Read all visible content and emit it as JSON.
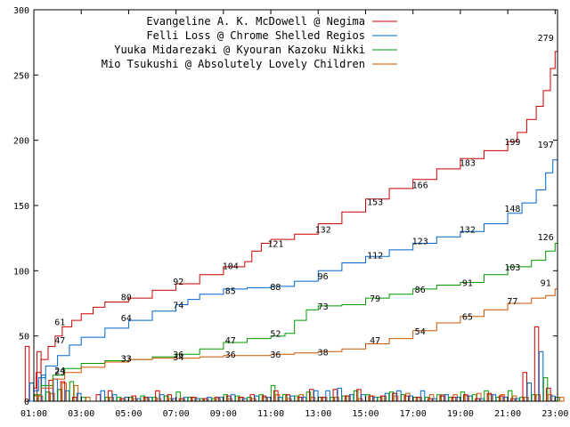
{
  "chart_data": {
    "type": "line",
    "title": "",
    "xlabel": "",
    "ylabel": "",
    "xlim": [
      1,
      23.1
    ],
    "ylim": [
      0,
      300
    ],
    "grid": false,
    "legend_position": "top-right",
    "x_tick_labels": [
      {
        "x": 1,
        "label": "01:00"
      },
      {
        "x": 3,
        "label": "03:00"
      },
      {
        "x": 5,
        "label": "05:00"
      },
      {
        "x": 7,
        "label": "07:00"
      },
      {
        "x": 9,
        "label": "09:00"
      },
      {
        "x": 11,
        "label": "11:00"
      },
      {
        "x": 13,
        "label": "13:00"
      },
      {
        "x": 15,
        "label": "15:00"
      },
      {
        "x": 17,
        "label": "17:00"
      },
      {
        "x": 19,
        "label": "19:00"
      },
      {
        "x": 21,
        "label": "21:00"
      },
      {
        "x": 23,
        "label": "23:00"
      }
    ],
    "y_ticks": [
      0,
      50,
      100,
      150,
      200,
      250,
      300
    ],
    "series": [
      {
        "name": "Evangeline A. K. McDowell @ Negima",
        "color": "#cc0000",
        "points": [
          [
            1,
            10
          ],
          [
            1.1,
            22
          ],
          [
            1.3,
            32
          ],
          [
            1.6,
            42
          ],
          [
            1.9,
            50
          ],
          [
            2.2,
            57
          ],
          [
            2.6,
            62
          ],
          [
            3,
            67
          ],
          [
            3.5,
            72
          ],
          [
            4,
            76
          ],
          [
            5,
            79
          ],
          [
            6,
            85
          ],
          [
            7,
            90
          ],
          [
            8,
            97
          ],
          [
            9,
            103
          ],
          [
            9.9,
            107
          ],
          [
            10.2,
            115
          ],
          [
            10.6,
            121
          ],
          [
            11,
            124
          ],
          [
            12,
            128
          ],
          [
            13,
            136
          ],
          [
            14,
            145
          ],
          [
            15,
            155
          ],
          [
            16,
            163
          ],
          [
            17,
            170
          ],
          [
            18,
            178
          ],
          [
            19,
            186
          ],
          [
            20,
            192
          ],
          [
            21,
            199
          ],
          [
            21.4,
            206
          ],
          [
            21.8,
            216
          ],
          [
            22.2,
            226
          ],
          [
            22.5,
            238
          ],
          [
            22.8,
            255
          ],
          [
            23,
            268
          ],
          [
            23.1,
            279
          ]
        ],
        "labels": [
          {
            "x": 2.1,
            "y": 61,
            "text": "61"
          },
          {
            "x": 4.9,
            "y": 80,
            "text": "80"
          },
          {
            "x": 7.1,
            "y": 92,
            "text": "92"
          },
          {
            "x": 9.3,
            "y": 104,
            "text": "104"
          },
          {
            "x": 11.2,
            "y": 121,
            "text": "121"
          },
          {
            "x": 13.2,
            "y": 132,
            "text": "132"
          },
          {
            "x": 15.4,
            "y": 153,
            "text": "153"
          },
          {
            "x": 17.3,
            "y": 166,
            "text": "166"
          },
          {
            "x": 19.3,
            "y": 183,
            "text": "183"
          },
          {
            "x": 21.2,
            "y": 199,
            "text": "199"
          },
          {
            "x": 22.6,
            "y": 279,
            "text": "279"
          }
        ]
      },
      {
        "name": "Felli Loss @ Chrome Shelled Regios",
        "color": "#0066cc",
        "points": [
          [
            1,
            8
          ],
          [
            1.2,
            18
          ],
          [
            1.5,
            27
          ],
          [
            2,
            35
          ],
          [
            2.5,
            43
          ],
          [
            3,
            49
          ],
          [
            4,
            56
          ],
          [
            5,
            62
          ],
          [
            6,
            69
          ],
          [
            7,
            74
          ],
          [
            7.5,
            78
          ],
          [
            8,
            82
          ],
          [
            9,
            86
          ],
          [
            10,
            87
          ],
          [
            11,
            88
          ],
          [
            12,
            92
          ],
          [
            13,
            100
          ],
          [
            14,
            106
          ],
          [
            15,
            111
          ],
          [
            16,
            116
          ],
          [
            17,
            121
          ],
          [
            18,
            126
          ],
          [
            19,
            130
          ],
          [
            20,
            136
          ],
          [
            21,
            144
          ],
          [
            21.6,
            152
          ],
          [
            22.2,
            162
          ],
          [
            22.6,
            175
          ],
          [
            22.9,
            185
          ],
          [
            23.1,
            197
          ]
        ],
        "labels": [
          {
            "x": 2.1,
            "y": 47,
            "text": "47"
          },
          {
            "x": 4.9,
            "y": 64,
            "text": "64"
          },
          {
            "x": 7.1,
            "y": 74,
            "text": "74"
          },
          {
            "x": 9.3,
            "y": 85,
            "text": "85"
          },
          {
            "x": 11.2,
            "y": 88,
            "text": "88"
          },
          {
            "x": 13.2,
            "y": 96,
            "text": "96"
          },
          {
            "x": 15.4,
            "y": 112,
            "text": "112"
          },
          {
            "x": 17.3,
            "y": 123,
            "text": "123"
          },
          {
            "x": 19.3,
            "y": 132,
            "text": "132"
          },
          {
            "x": 21.2,
            "y": 148,
            "text": "148"
          },
          {
            "x": 22.6,
            "y": 197,
            "text": "197"
          }
        ]
      },
      {
        "name": "Yuuka Midarezaki @ Kyouran Kazoku Nikki",
        "color": "#009900",
        "points": [
          [
            1,
            5
          ],
          [
            1.3,
            12
          ],
          [
            1.8,
            20
          ],
          [
            2.3,
            25
          ],
          [
            3,
            29
          ],
          [
            4,
            31
          ],
          [
            5,
            32
          ],
          [
            6,
            34
          ],
          [
            7,
            36
          ],
          [
            8,
            40
          ],
          [
            9,
            45
          ],
          [
            10,
            48
          ],
          [
            11,
            50
          ],
          [
            11.6,
            52
          ],
          [
            12,
            62
          ],
          [
            12.5,
            70
          ],
          [
            13,
            73
          ],
          [
            14,
            74
          ],
          [
            15,
            79
          ],
          [
            16,
            82
          ],
          [
            17,
            86
          ],
          [
            18,
            89
          ],
          [
            19,
            91
          ],
          [
            20,
            97
          ],
          [
            21,
            103
          ],
          [
            22,
            108
          ],
          [
            22.6,
            115
          ],
          [
            23,
            121
          ],
          [
            23.1,
            126
          ]
        ],
        "labels": [
          {
            "x": 2.1,
            "y": 23,
            "text": "23"
          },
          {
            "x": 4.9,
            "y": 33,
            "text": "33"
          },
          {
            "x": 7.1,
            "y": 36,
            "text": "36"
          },
          {
            "x": 9.3,
            "y": 47,
            "text": "47"
          },
          {
            "x": 11.2,
            "y": 52,
            "text": "52"
          },
          {
            "x": 13.2,
            "y": 73,
            "text": "73"
          },
          {
            "x": 15.4,
            "y": 79,
            "text": "79"
          },
          {
            "x": 17.3,
            "y": 86,
            "text": "86"
          },
          {
            "x": 19.3,
            "y": 91,
            "text": "91"
          },
          {
            "x": 21.2,
            "y": 103,
            "text": "103"
          },
          {
            "x": 22.6,
            "y": 126,
            "text": "126"
          }
        ]
      },
      {
        "name": "Mio Tsukushi @ Absolutely Lovely Children",
        "color": "#cc5500",
        "points": [
          [
            1,
            4
          ],
          [
            1.3,
            10
          ],
          [
            1.8,
            17
          ],
          [
            2.3,
            22
          ],
          [
            3,
            26
          ],
          [
            4,
            30
          ],
          [
            5,
            32
          ],
          [
            6,
            33
          ],
          [
            7,
            33
          ],
          [
            8,
            34
          ],
          [
            9,
            35
          ],
          [
            10,
            35
          ],
          [
            11,
            36
          ],
          [
            12,
            37
          ],
          [
            13,
            38
          ],
          [
            14,
            40
          ],
          [
            15,
            44
          ],
          [
            16,
            48
          ],
          [
            17,
            54
          ],
          [
            18,
            60
          ],
          [
            19,
            65
          ],
          [
            20,
            70
          ],
          [
            21,
            75
          ],
          [
            22,
            79
          ],
          [
            22.6,
            81
          ],
          [
            23,
            86
          ],
          [
            23.1,
            91
          ]
        ],
        "labels": [
          {
            "x": 2.1,
            "y": 24,
            "text": "24"
          },
          {
            "x": 4.9,
            "y": 33,
            "text": "33"
          },
          {
            "x": 7.1,
            "y": 34,
            "text": "34"
          },
          {
            "x": 9.3,
            "y": 36,
            "text": "36"
          },
          {
            "x": 11.2,
            "y": 36,
            "text": "36"
          },
          {
            "x": 13.2,
            "y": 38,
            "text": "38"
          },
          {
            "x": 15.4,
            "y": 47,
            "text": "47"
          },
          {
            "x": 17.3,
            "y": 54,
            "text": "54"
          },
          {
            "x": 19.3,
            "y": 65,
            "text": "65"
          },
          {
            "x": 21.2,
            "y": 77,
            "text": "77"
          },
          {
            "x": 22.6,
            "y": 91,
            "text": "91"
          }
        ]
      }
    ],
    "hourly_bars": {
      "type": "bar",
      "x": [
        1,
        1.5,
        2,
        2.5,
        3,
        3.5,
        4,
        4.5,
        5,
        5.5,
        6,
        6.5,
        7,
        7.5,
        8,
        8.5,
        9,
        9.5,
        10,
        10.5,
        11,
        11.5,
        12,
        12.5,
        13,
        13.5,
        14,
        14.5,
        15,
        15.5,
        16,
        16.5,
        17,
        17.5,
        18,
        18.5,
        19,
        19.5,
        20,
        20.5,
        21,
        21.5,
        22,
        22.5,
        23
      ],
      "series": [
        {
          "name": "Evangeline A. K. McDowell @ Negima",
          "color": "#cc0000",
          "values": [
            42,
            38,
            16,
            15,
            3,
            0,
            5,
            8,
            2,
            4,
            3,
            8,
            5,
            2,
            3,
            2,
            3,
            4,
            3,
            5,
            4,
            8,
            5,
            3,
            9,
            3,
            9,
            4,
            9,
            4,
            4,
            6,
            4,
            3,
            2,
            4,
            3,
            5,
            2,
            6,
            4,
            2,
            22,
            57,
            10
          ]
        },
        {
          "name": "Felli Loss @ Chrome Shelled Regios",
          "color": "#0066cc",
          "values": [
            14,
            20,
            17,
            8,
            6,
            0,
            8,
            5,
            3,
            2,
            3,
            5,
            2,
            3,
            2,
            3,
            3,
            5,
            2,
            4,
            3,
            3,
            4,
            3,
            8,
            8,
            10,
            5,
            5,
            3,
            6,
            8,
            4,
            8,
            2,
            5,
            3,
            4,
            2,
            5,
            3,
            2,
            14,
            38,
            4
          ]
        },
        {
          "name": "Yuuka Midarezaki @ Kyouran Kazoku Nikki",
          "color": "#009900",
          "values": [
            5,
            7,
            9,
            15,
            3,
            0,
            3,
            3,
            3,
            4,
            3,
            4,
            7,
            3,
            2,
            2,
            5,
            4,
            3,
            5,
            12,
            5,
            4,
            7,
            3,
            3,
            4,
            8,
            5,
            3,
            7,
            5,
            3,
            3,
            5,
            3,
            7,
            5,
            8,
            3,
            8,
            3,
            5,
            18,
            3
          ]
        },
        {
          "name": "Mio Tsukushi @ Absolutely Lovely Children",
          "color": "#cc5500",
          "values": [
            4,
            6,
            14,
            12,
            3,
            0,
            3,
            2,
            2,
            2,
            2,
            2,
            2,
            3,
            2,
            2,
            2,
            3,
            2,
            3,
            5,
            2,
            5,
            3,
            3,
            3,
            4,
            2,
            4,
            4,
            4,
            6,
            3,
            5,
            5,
            5,
            4,
            6,
            5,
            5,
            4,
            3,
            5,
            5,
            3
          ]
        }
      ]
    }
  }
}
